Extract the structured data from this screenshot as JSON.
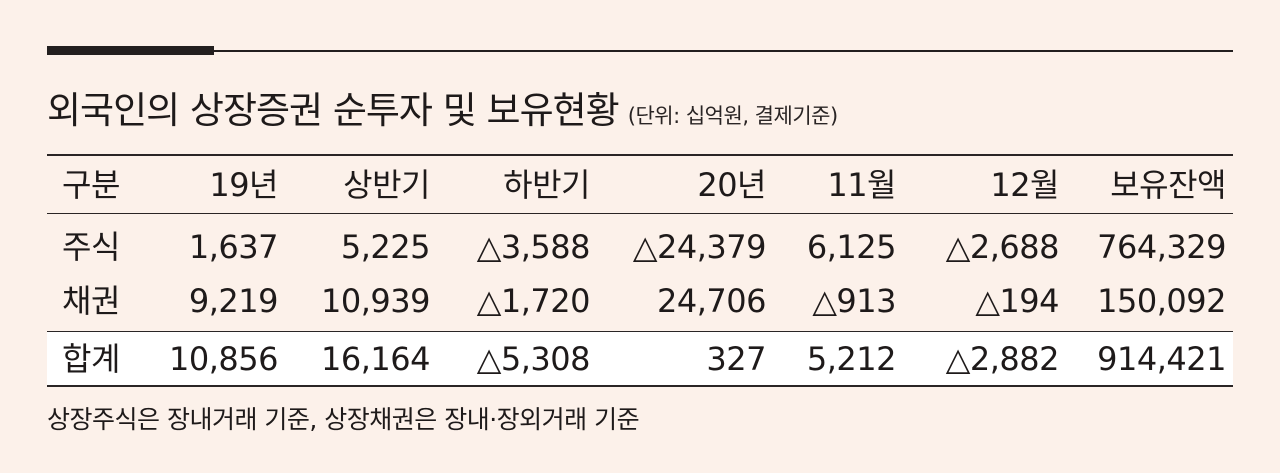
{
  "title": "외국인의 상장증권 순투자 및 보유현황",
  "subtitle": "(단위: 십억원, 결제기준)",
  "table": {
    "headers": [
      "구분",
      "19년",
      "상반기",
      "하반기",
      "20년",
      "11월",
      "12월",
      "보유잔액"
    ],
    "rows": [
      [
        "주식",
        "1,637",
        "5,225",
        "△3,588",
        "△24,379",
        "6,125",
        "△2,688",
        "764,329"
      ],
      [
        "채권",
        "9,219",
        "10,939",
        "△1,720",
        "24,706",
        "△913",
        "△194",
        "150,092"
      ],
      [
        "합계",
        "10,856",
        "16,164",
        "△5,308",
        "327",
        "5,212",
        "△2,882",
        "914,421"
      ]
    ]
  },
  "footnote": "상장주식은 장내거래 기준, 상장채권은 장내·장외거래 기준",
  "colors": {
    "background": "#fcf1ea",
    "text": "#1e1a1a",
    "total_row_background": "#ffffff",
    "rules": "#231f1f"
  }
}
